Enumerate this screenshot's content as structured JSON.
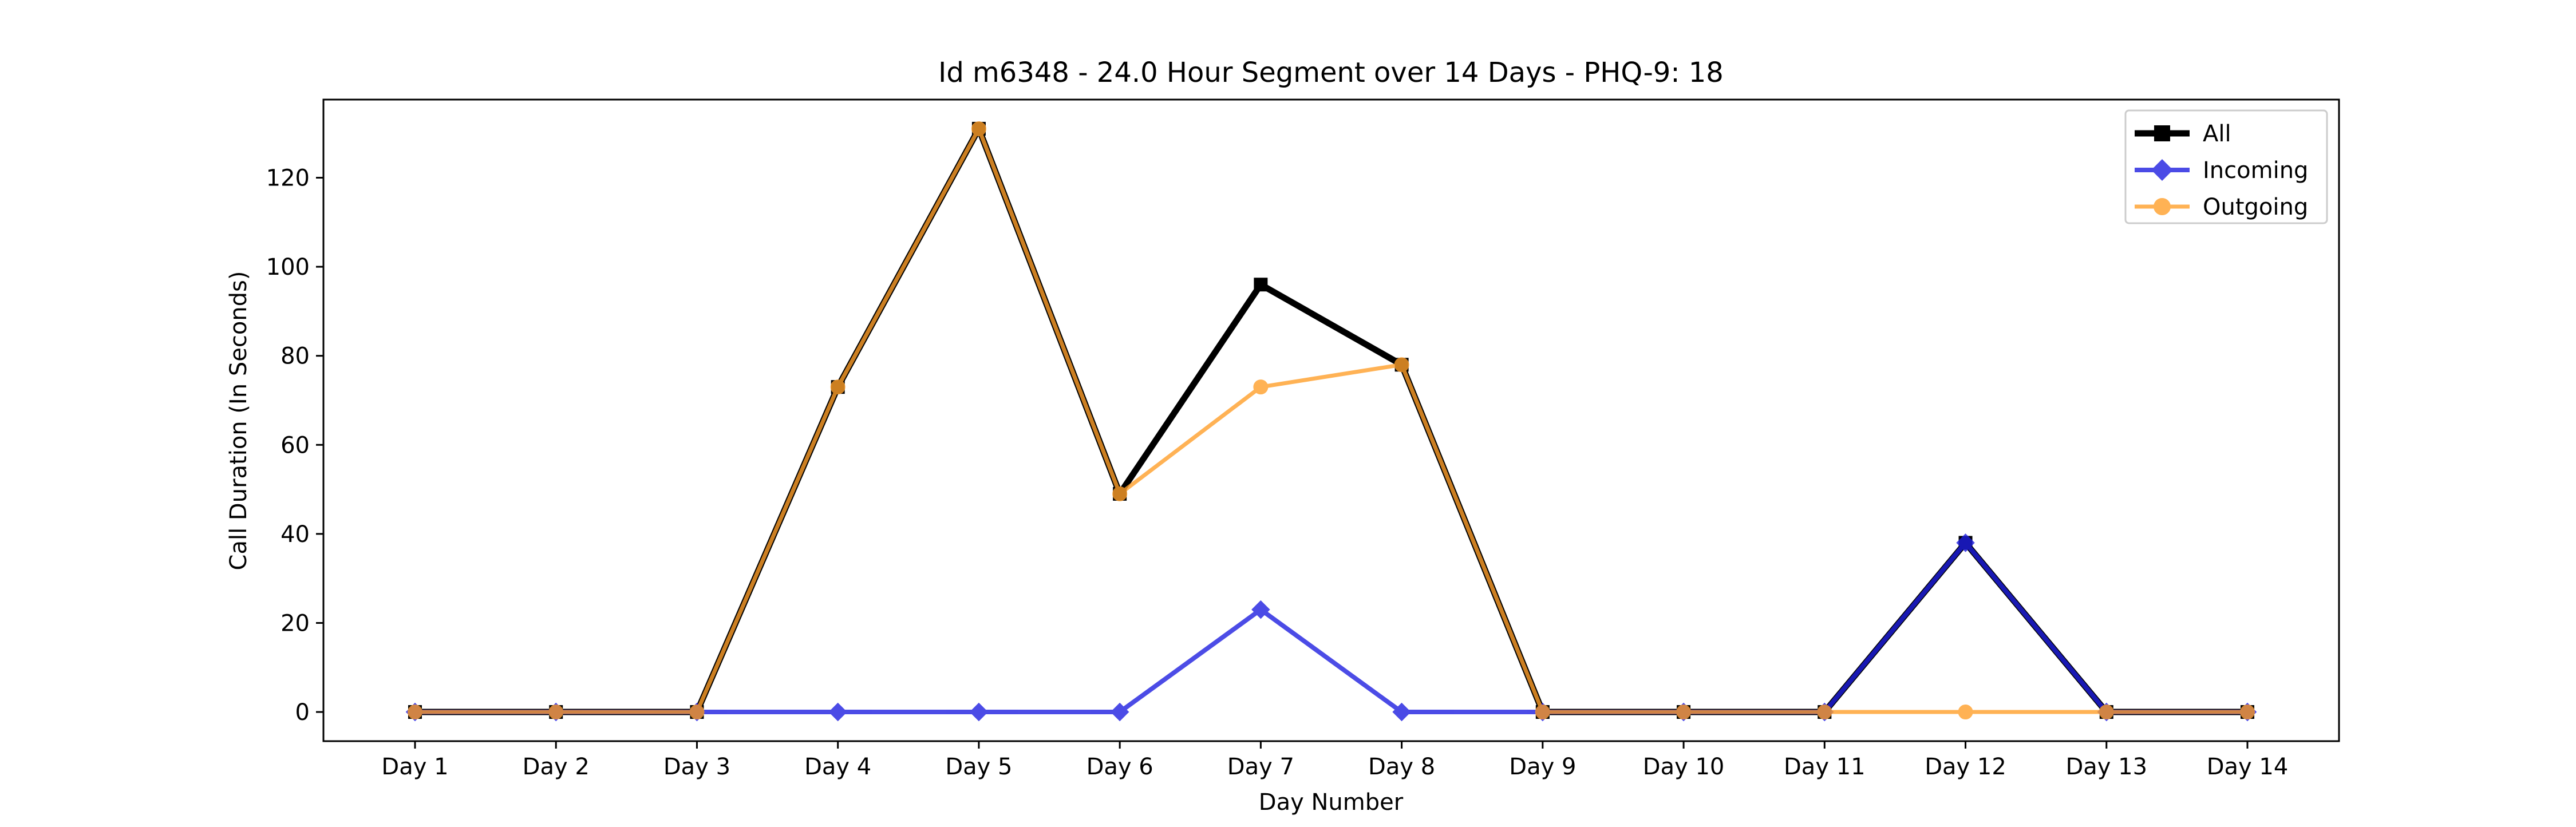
{
  "chart_data": {
    "type": "line",
    "title": "Id m6348 - 24.0 Hour Segment over 14 Days - PHQ-9: 18",
    "xlabel": "Day Number",
    "ylabel": "Call Duration (In Seconds)",
    "categories": [
      "Day 1",
      "Day 2",
      "Day 3",
      "Day 4",
      "Day 5",
      "Day 6",
      "Day 7",
      "Day 8",
      "Day 9",
      "Day 10",
      "Day 11",
      "Day 12",
      "Day 13",
      "Day 14"
    ],
    "ylim": [
      -6.55,
      137.55
    ],
    "yticks": [
      0,
      20,
      40,
      60,
      80,
      100,
      120
    ],
    "grid": false,
    "legend_position": "top-right",
    "series": [
      {
        "name": "All",
        "color": "#000000",
        "marker": "square",
        "values": [
          0,
          0,
          0,
          73,
          131,
          49,
          96,
          78,
          0,
          0,
          0,
          38,
          0,
          0
        ]
      },
      {
        "name": "Incoming",
        "color": "#1f1fe0",
        "marker": "diamond",
        "values": [
          0,
          0,
          0,
          0,
          0,
          0,
          23,
          0,
          0,
          0,
          0,
          38,
          0,
          0
        ]
      },
      {
        "name": "Outgoing",
        "color": "#ff9f2a",
        "marker": "circle",
        "values": [
          0,
          0,
          0,
          73,
          131,
          49,
          73,
          78,
          0,
          0,
          0,
          0,
          0,
          0
        ]
      }
    ]
  }
}
